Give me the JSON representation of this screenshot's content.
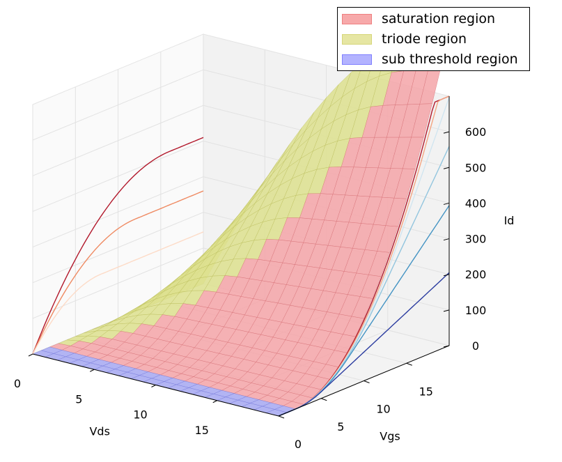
{
  "chart_data": {
    "type": "surface3d",
    "title": "",
    "xlabel": "Vds",
    "ylabel": "Vgs",
    "zlabel": "Id",
    "xlim": [
      0,
      20
    ],
    "ylim": [
      0,
      20
    ],
    "zlim": [
      0,
      700
    ],
    "x_ticks": [
      "0",
      "5",
      "10",
      "15"
    ],
    "y_ticks": [
      "0",
      "5",
      "10",
      "15"
    ],
    "z_ticks": [
      "0",
      "100",
      "200",
      "300",
      "400",
      "500",
      "600"
    ],
    "grid": true,
    "legend_position": "top-right",
    "threshold_vgs": 2,
    "regions": [
      {
        "name": "saturation region",
        "color": "#f4a5a8"
      },
      {
        "name": "triode region",
        "color": "#dde08e"
      },
      {
        "name": "sub threshold region",
        "color": "#a6a8f2"
      }
    ],
    "projections": {
      "vds_wall_curves": [
        {
          "vgs": 18,
          "peak_id": 410,
          "color": "#b2182b"
        },
        {
          "vgs": 14,
          "peak_id": 260,
          "color": "#ef8a62"
        },
        {
          "vgs": 10,
          "peak_id": 145,
          "color": "#fddbc7"
        }
      ],
      "vgs_wall_curves": [
        {
          "vds": 18,
          "color": "#b2182b"
        },
        {
          "vds": 15,
          "color": "#f4a582"
        },
        {
          "vds": 12,
          "color": "#d1e5f0"
        },
        {
          "vds": 9,
          "color": "#92c5de"
        },
        {
          "vds": 6,
          "color": "#4393c3"
        },
        {
          "vds": 3,
          "color": "#2c3da0"
        }
      ]
    }
  },
  "legend": {
    "items": [
      {
        "label": "saturation region",
        "fill": "#f7a9aa",
        "edge": "#ef7f7f"
      },
      {
        "label": "triode region",
        "fill": "#e6e6a3",
        "edge": "#d6d67a"
      },
      {
        "label": "sub threshold region",
        "fill": "#b3b3ff",
        "edge": "#7f7fff"
      }
    ]
  }
}
